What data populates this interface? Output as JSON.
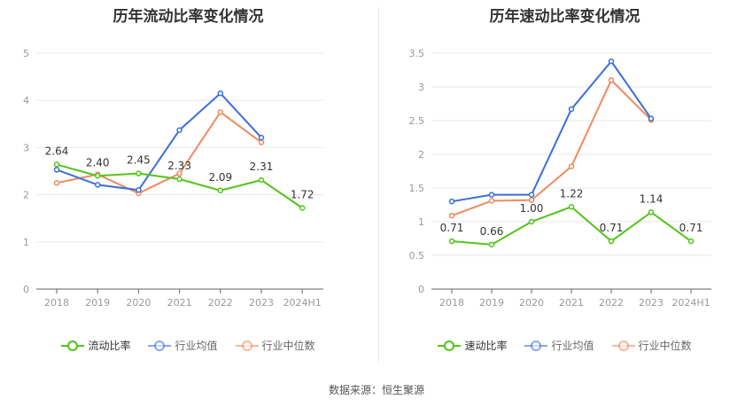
{
  "source": "数据来源：恒生聚源",
  "chart_data": [
    {
      "type": "line",
      "title": "历年流动比率变化情况",
      "categories": [
        "2018",
        "2019",
        "2020",
        "2021",
        "2022",
        "2023",
        "2024H1"
      ],
      "ylim": [
        0,
        5
      ],
      "yticks": [
        0,
        1,
        2,
        3,
        4,
        5
      ],
      "grid": true,
      "legend_position": "bottom",
      "series": [
        {
          "name": "流动比率",
          "color": "#52c41a",
          "labeled": true,
          "values": [
            2.64,
            2.4,
            2.45,
            2.33,
            2.09,
            2.31,
            1.72
          ],
          "labels": [
            "2.64",
            "2.40",
            "2.45",
            "2.33",
            "2.09",
            "2.31",
            "1.72"
          ]
        },
        {
          "name": "行业均值",
          "color": "#3b6fd8",
          "labeled": false,
          "values": [
            2.53,
            2.21,
            2.1,
            3.37,
            4.15,
            3.21,
            null
          ]
        },
        {
          "name": "行业中位数",
          "color": "#f08a5d",
          "labeled": false,
          "values": [
            2.25,
            2.43,
            2.03,
            2.45,
            3.75,
            3.11,
            null
          ]
        }
      ]
    },
    {
      "type": "line",
      "title": "历年速动比率变化情况",
      "categories": [
        "2018",
        "2019",
        "2020",
        "2021",
        "2022",
        "2023",
        "2024H1"
      ],
      "ylim": [
        0,
        3.5
      ],
      "yticks": [
        0,
        0.5,
        1,
        1.5,
        2,
        2.5,
        3,
        3.5
      ],
      "grid": true,
      "legend_position": "bottom",
      "series": [
        {
          "name": "速动比率",
          "color": "#52c41a",
          "labeled": true,
          "values": [
            0.71,
            0.66,
            1.0,
            1.22,
            0.71,
            1.14,
            0.71
          ],
          "labels": [
            "0.71",
            "0.66",
            "1.00",
            "1.22",
            "0.71",
            "1.14",
            "0.71"
          ]
        },
        {
          "name": "行业均值",
          "color": "#3b6fd8",
          "labeled": false,
          "values": [
            1.3,
            1.4,
            1.4,
            2.67,
            3.38,
            2.53,
            null
          ]
        },
        {
          "name": "行业中位数",
          "color": "#f08a5d",
          "labeled": false,
          "values": [
            1.09,
            1.31,
            1.32,
            1.82,
            3.1,
            2.51,
            null
          ]
        }
      ]
    }
  ]
}
